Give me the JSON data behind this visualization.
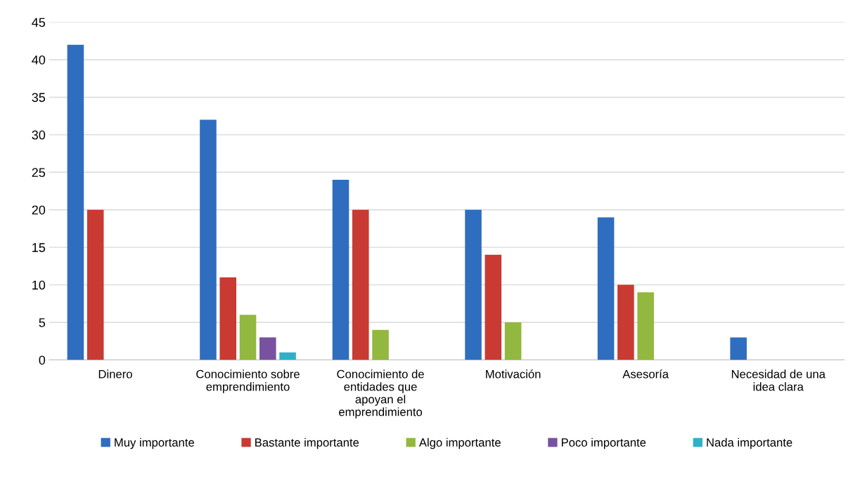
{
  "chart_data": {
    "type": "bar",
    "categories": [
      "Dinero",
      "Conocimiento sobre emprendimiento",
      "Conocimiento de entidades que apoyan el emprendimiento",
      "Motivación",
      "Asesoría",
      "Necesidad de una idea clara"
    ],
    "series": [
      {
        "name": "Muy importante",
        "color": "#2f6dbf",
        "values": [
          42,
          32,
          24,
          20,
          19,
          3
        ]
      },
      {
        "name": "Bastante importante",
        "color": "#c83a32",
        "values": [
          20,
          11,
          20,
          14,
          10,
          null
        ]
      },
      {
        "name": "Algo importante",
        "color": "#93b83f",
        "values": [
          null,
          6,
          4,
          5,
          9,
          null
        ]
      },
      {
        "name": "Poco importante",
        "color": "#7851a0",
        "values": [
          null,
          3,
          null,
          null,
          null,
          null
        ]
      },
      {
        "name": "Nada importante",
        "color": "#2fb0c8",
        "values": [
          null,
          1,
          null,
          null,
          null,
          null
        ]
      }
    ],
    "ylim": [
      0,
      45
    ],
    "yticks": [
      0,
      5,
      10,
      15,
      20,
      25,
      30,
      35,
      40,
      45
    ],
    "grid": "y",
    "legend": "bottom"
  }
}
